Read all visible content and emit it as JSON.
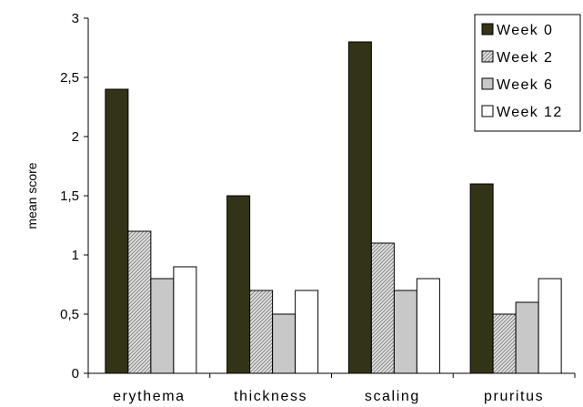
{
  "chart_data": {
    "type": "bar",
    "title": "",
    "xlabel": "",
    "ylabel": "mean score",
    "ylim": [
      0,
      3
    ],
    "yticks": [
      "0",
      "0,5",
      "1",
      "1,5",
      "2",
      "2,5",
      "3"
    ],
    "ytick_values": [
      0,
      0.5,
      1,
      1.5,
      2,
      2.5,
      3
    ],
    "grid": false,
    "legend_position": "top-right",
    "categories": [
      "erythema",
      "thickness",
      "scaling",
      "pruritus"
    ],
    "series": [
      {
        "name": "Week 0",
        "values": [
          2.4,
          1.5,
          2.8,
          1.6
        ],
        "color": "#333318",
        "pattern": "solid"
      },
      {
        "name": "Week 2",
        "values": [
          1.2,
          0.7,
          1.1,
          0.5
        ],
        "color": "#d9d9d9",
        "pattern": "hatch"
      },
      {
        "name": "Week 6",
        "values": [
          0.8,
          0.5,
          0.7,
          0.6
        ],
        "color": "#c8c8c8",
        "pattern": "solid"
      },
      {
        "name": "Week 12",
        "values": [
          0.9,
          0.7,
          0.8,
          0.8
        ],
        "color": "#ffffff",
        "pattern": "solid"
      }
    ]
  }
}
